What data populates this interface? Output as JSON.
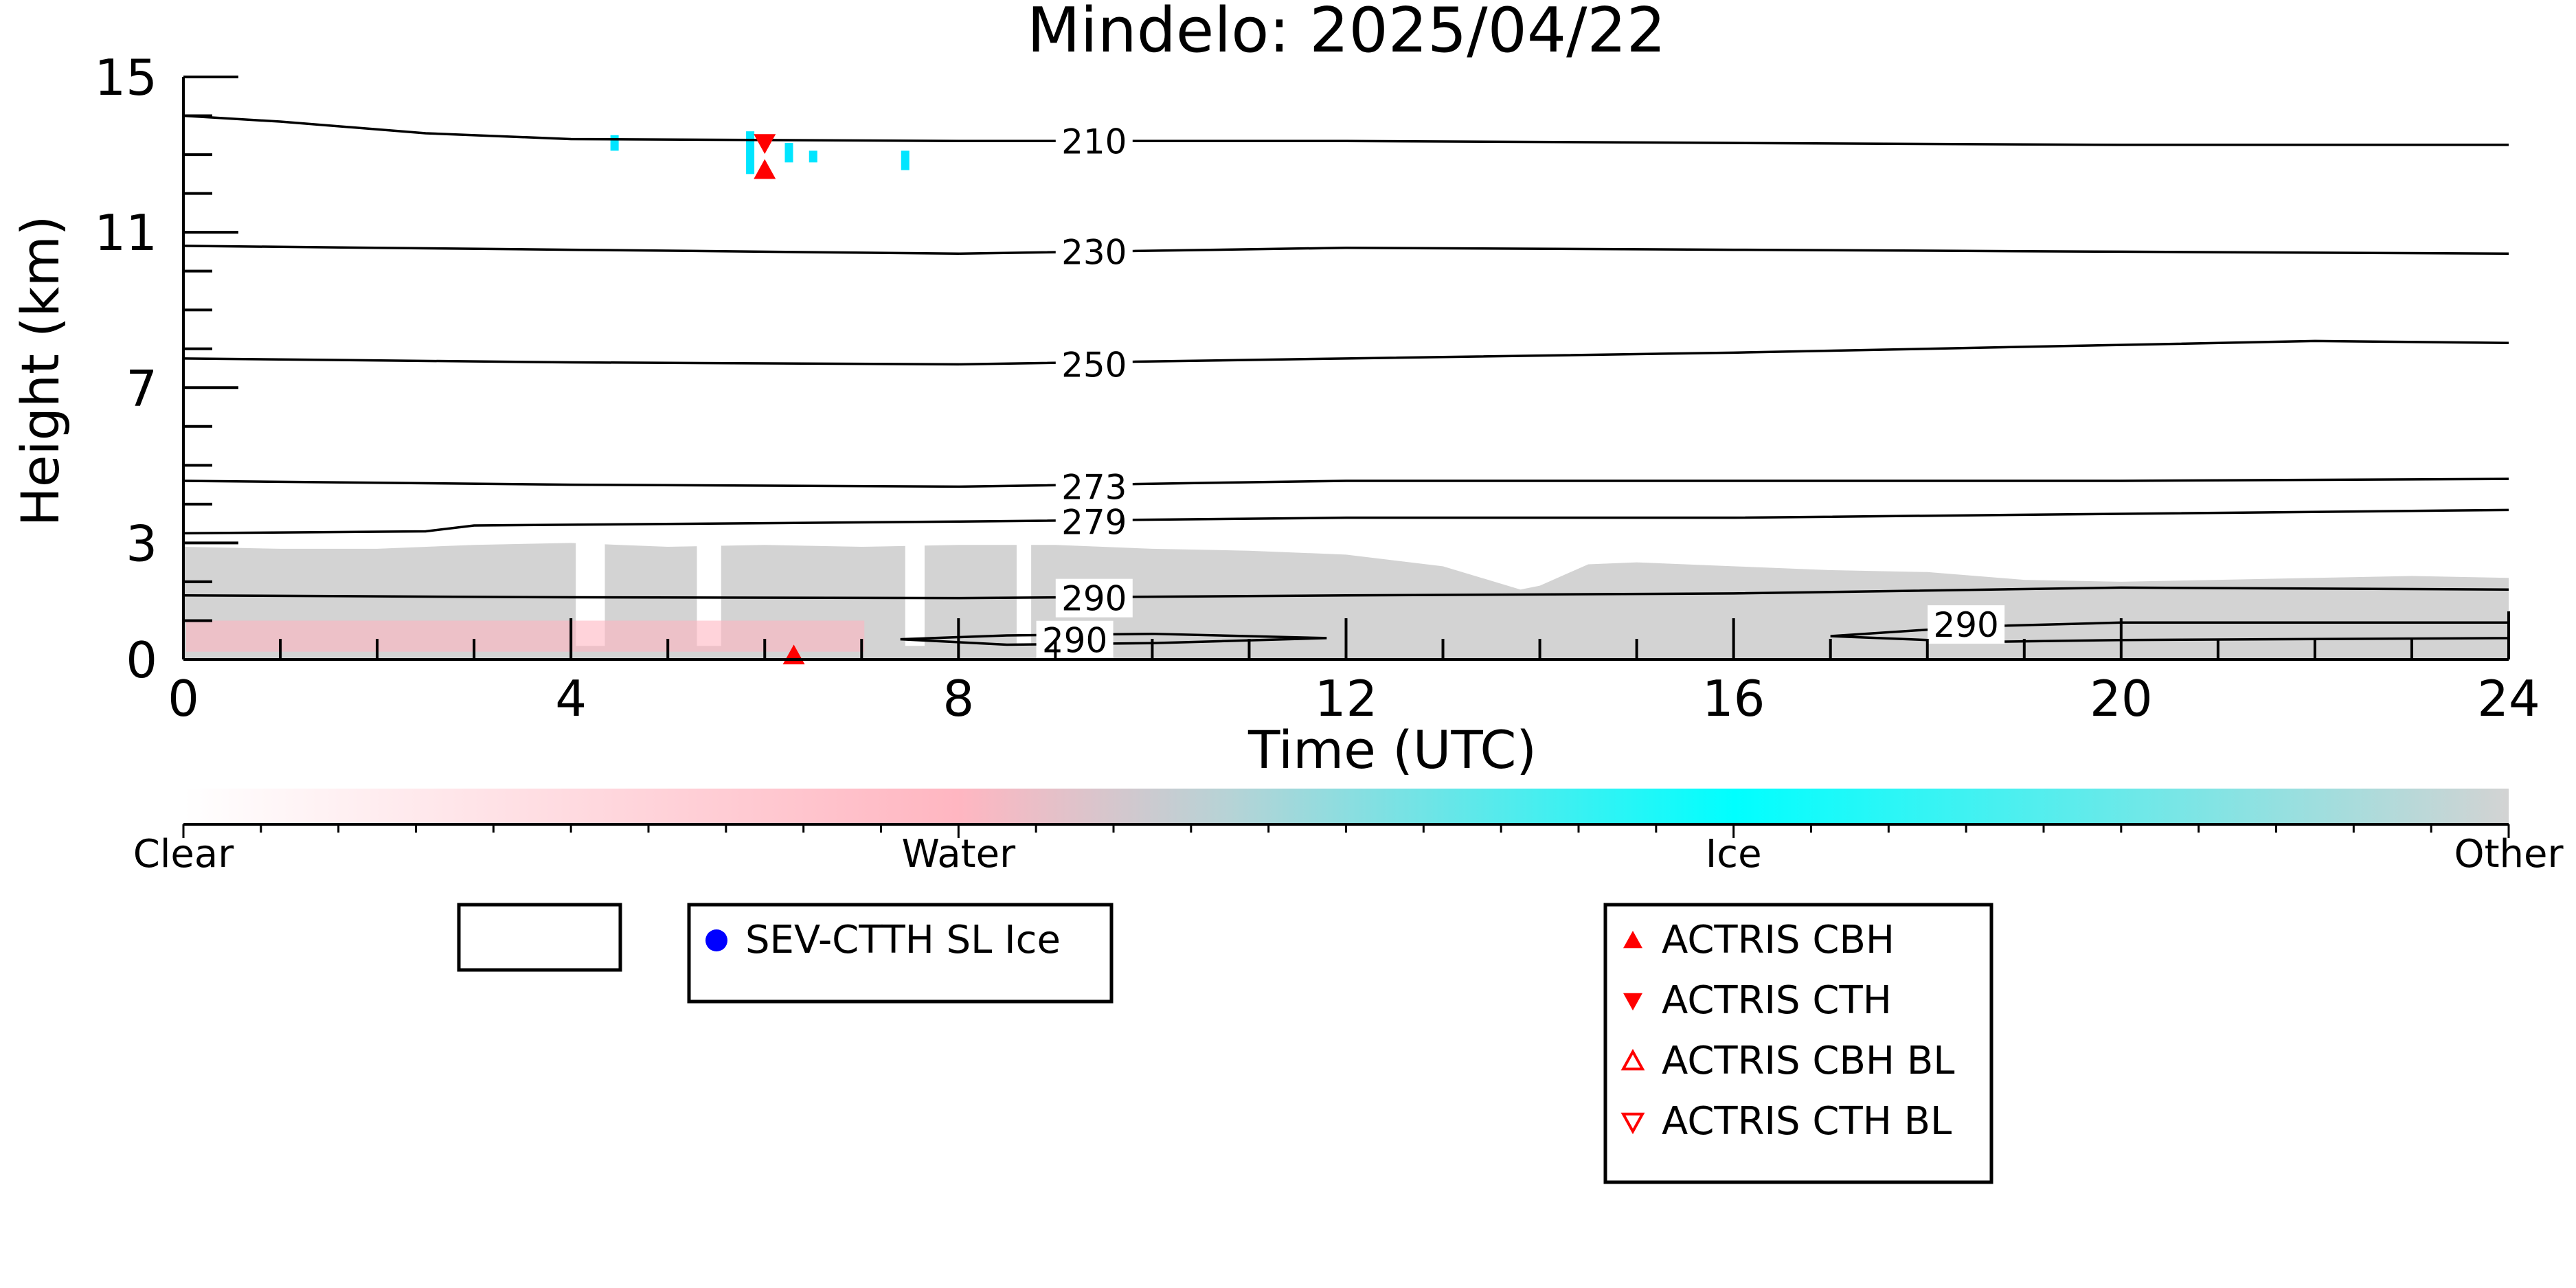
{
  "chart_data": {
    "type": "heatmap",
    "title": "Mindelo: 2025/04/22",
    "xlabel": "Time (UTC)",
    "ylabel": "Height (km)",
    "xlim": [
      0,
      24
    ],
    "ylim": [
      0,
      15
    ],
    "x_ticks": [
      "0",
      "4",
      "8",
      "12",
      "16",
      "20",
      "24"
    ],
    "y_ticks": [
      "0",
      "3",
      "7",
      "11",
      "15"
    ],
    "contours": [
      {
        "label": "210",
        "points": [
          [
            0,
            14.0
          ],
          [
            1,
            13.85
          ],
          [
            2.5,
            13.55
          ],
          [
            4,
            13.4
          ],
          [
            8,
            13.35
          ],
          [
            12,
            13.35
          ],
          [
            16,
            13.3
          ],
          [
            20,
            13.25
          ],
          [
            24,
            13.25
          ]
        ]
      },
      {
        "label": "230",
        "points": [
          [
            0,
            10.65
          ],
          [
            4,
            10.55
          ],
          [
            8,
            10.45
          ],
          [
            12,
            10.6
          ],
          [
            16,
            10.55
          ],
          [
            20,
            10.5
          ],
          [
            24,
            10.45
          ]
        ]
      },
      {
        "label": "250",
        "points": [
          [
            0,
            7.75
          ],
          [
            4,
            7.65
          ],
          [
            8,
            7.6
          ],
          [
            12,
            7.75
          ],
          [
            16,
            7.9
          ],
          [
            20,
            8.1
          ],
          [
            22,
            8.2
          ],
          [
            24,
            8.15
          ]
        ]
      },
      {
        "label": "273",
        "points": [
          [
            0,
            4.6
          ],
          [
            4,
            4.5
          ],
          [
            8,
            4.45
          ],
          [
            12,
            4.6
          ],
          [
            16,
            4.6
          ],
          [
            20,
            4.6
          ],
          [
            24,
            4.65
          ]
        ]
      },
      {
        "label": "279",
        "points": [
          [
            0,
            3.25
          ],
          [
            2.5,
            3.3
          ],
          [
            3,
            3.45
          ],
          [
            8,
            3.55
          ],
          [
            12,
            3.65
          ],
          [
            16,
            3.65
          ],
          [
            20,
            3.75
          ],
          [
            24,
            3.85
          ]
        ]
      },
      {
        "label": "290",
        "points": [
          [
            0,
            1.65
          ],
          [
            4,
            1.6
          ],
          [
            8,
            1.58
          ],
          [
            12,
            1.65
          ],
          [
            16,
            1.7
          ],
          [
            20,
            1.85
          ],
          [
            24,
            1.8
          ]
        ]
      }
    ],
    "closed_contours": [
      {
        "label": "290",
        "points": [
          [
            7.4,
            0.52
          ],
          [
            8.5,
            0.62
          ],
          [
            10,
            0.66
          ],
          [
            11.8,
            0.55
          ],
          [
            10,
            0.42
          ],
          [
            8.5,
            0.38
          ],
          [
            7.4,
            0.52
          ]
        ]
      },
      {
        "label": "290",
        "points": [
          [
            17,
            0.6
          ],
          [
            18.5,
            0.85
          ],
          [
            20,
            0.95
          ],
          [
            24,
            0.95
          ],
          [
            24,
            0.55
          ],
          [
            20,
            0.5
          ],
          [
            18.5,
            0.45
          ],
          [
            17,
            0.6
          ]
        ]
      }
    ],
    "contour_labels": [
      {
        "text": "210",
        "x": 9.4,
        "y": 13.35
      },
      {
        "text": "230",
        "x": 9.4,
        "y": 10.5
      },
      {
        "text": "250",
        "x": 9.4,
        "y": 7.6
      },
      {
        "text": "273",
        "x": 9.4,
        "y": 4.45
      },
      {
        "text": "279",
        "x": 9.4,
        "y": 3.55
      },
      {
        "text": "290",
        "x": 9.4,
        "y": 1.58
      },
      {
        "text": "290",
        "x": 9.2,
        "y": 0.5
      },
      {
        "text": "290",
        "x": 18.4,
        "y": 0.9
      }
    ],
    "colorbar": {
      "labels": [
        "Clear",
        "Water",
        "Ice",
        "Other"
      ],
      "colors": [
        "#ffffff",
        "#ffb6c1",
        "#00ffff",
        "#d3d3d3"
      ]
    },
    "ice_patches": [
      {
        "x": 4.45,
        "y0": 13.1,
        "y1": 13.5
      },
      {
        "x": 5.85,
        "y0": 12.5,
        "y1": 13.6
      },
      {
        "x": 6.25,
        "y0": 12.8,
        "y1": 13.3
      },
      {
        "x": 6.5,
        "y0": 12.8,
        "y1": 13.1
      },
      {
        "x": 7.45,
        "y0": 12.6,
        "y1": 13.1
      }
    ],
    "cbh_markers": [
      {
        "x": 6.0,
        "y": 12.6
      },
      {
        "x": 6.3,
        "y": 0.1
      }
    ],
    "cth_markers": [
      {
        "x": 6.0,
        "y": 13.3
      }
    ],
    "other_profile": [
      [
        0,
        2.9
      ],
      [
        1,
        2.85
      ],
      [
        2,
        2.85
      ],
      [
        3,
        2.95
      ],
      [
        4,
        3.0
      ],
      [
        5,
        2.9
      ],
      [
        6,
        2.95
      ],
      [
        7,
        2.9
      ],
      [
        8,
        2.95
      ],
      [
        9,
        2.95
      ],
      [
        10,
        2.85
      ],
      [
        11,
        2.8
      ],
      [
        12,
        2.7
      ],
      [
        13,
        2.4
      ],
      [
        13.8,
        1.8
      ],
      [
        14,
        1.9
      ],
      [
        14.5,
        2.45
      ],
      [
        15,
        2.5
      ],
      [
        16,
        2.4
      ],
      [
        17,
        2.3
      ],
      [
        18,
        2.25
      ],
      [
        19,
        2.05
      ],
      [
        20,
        2.0
      ],
      [
        21,
        2.05
      ],
      [
        22,
        2.1
      ],
      [
        23,
        2.15
      ],
      [
        24,
        2.1
      ]
    ],
    "clear_gaps": [
      [
        4.05,
        4.35
      ],
      [
        5.3,
        5.55
      ],
      [
        7.45,
        7.65
      ],
      [
        8.6,
        8.75
      ]
    ],
    "water_band": [
      [
        0,
        1.0
      ],
      [
        7,
        0.9
      ]
    ]
  },
  "legend_boxes": [
    {
      "entries": []
    },
    {
      "entries": [
        {
          "marker": "filled-circle",
          "color": "#0000ff",
          "label": "SEV-CTTH SL Ice"
        }
      ]
    },
    {
      "entries": [
        {
          "marker": "filled-triangle-up",
          "color": "#ff0000",
          "label": "ACTRIS CBH"
        },
        {
          "marker": "filled-triangle-down",
          "color": "#ff0000",
          "label": "ACTRIS CTH"
        },
        {
          "marker": "open-triangle-up",
          "color": "#ff0000",
          "label": "ACTRIS CBH BL"
        },
        {
          "marker": "open-triangle-down",
          "color": "#ff0000",
          "label": "ACTRIS CTH BL"
        }
      ]
    }
  ]
}
